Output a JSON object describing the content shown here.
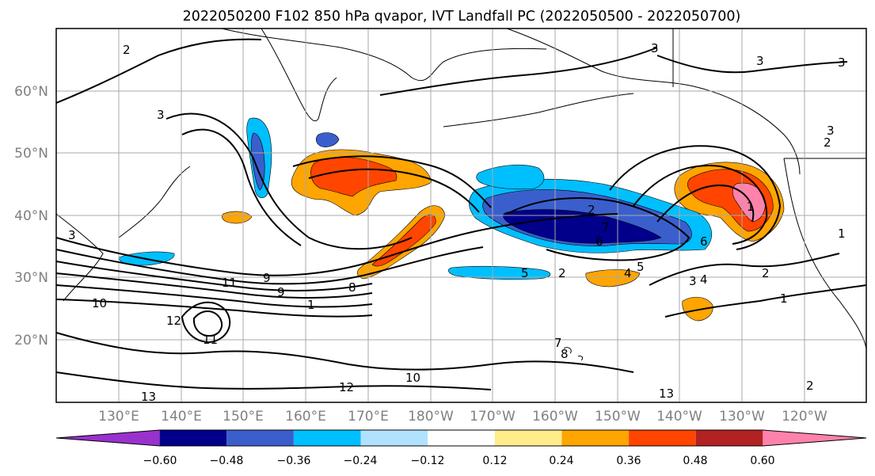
{
  "title": "2022050200 F102 850 hPa qvapor, IVT Landfall PC (2022050500 - 2022050700)",
  "lat_labels": [
    "60°N",
    "50°N",
    "40°N",
    "30°N",
    "20°N"
  ],
  "lon_labels": [
    "130°E",
    "140°E",
    "150°E",
    "160°E",
    "170°E",
    "180°W",
    "170°W",
    "160°W",
    "150°W",
    "140°W",
    "130°W",
    "120°W"
  ],
  "colorbar": {
    "ticks": [
      "−0.60",
      "−0.48",
      "−0.36",
      "−0.24",
      "−0.12",
      "0.12",
      "0.24",
      "0.36",
      "0.48",
      "0.60"
    ],
    "colors": [
      "#9932cc",
      "#00008b",
      "#3a5fcd",
      "#00bfff",
      "#b0e2ff",
      "#ffffff",
      "#ffec8b",
      "#ffa500",
      "#ff4500",
      "#b22222",
      "#ff82ab"
    ]
  },
  "contour_labels": [
    "2",
    "3",
    "3",
    "3",
    "3",
    "2",
    "1",
    "1",
    "2",
    "2",
    "1",
    "4",
    "5",
    "6",
    "7",
    "8",
    "9",
    "9",
    "10",
    "11",
    "12",
    "13",
    "13",
    "2",
    "3",
    "4",
    "5",
    "6",
    "3",
    "1",
    "2",
    "7",
    "8",
    "10",
    "11",
    "12",
    "3",
    "2"
  ]
}
